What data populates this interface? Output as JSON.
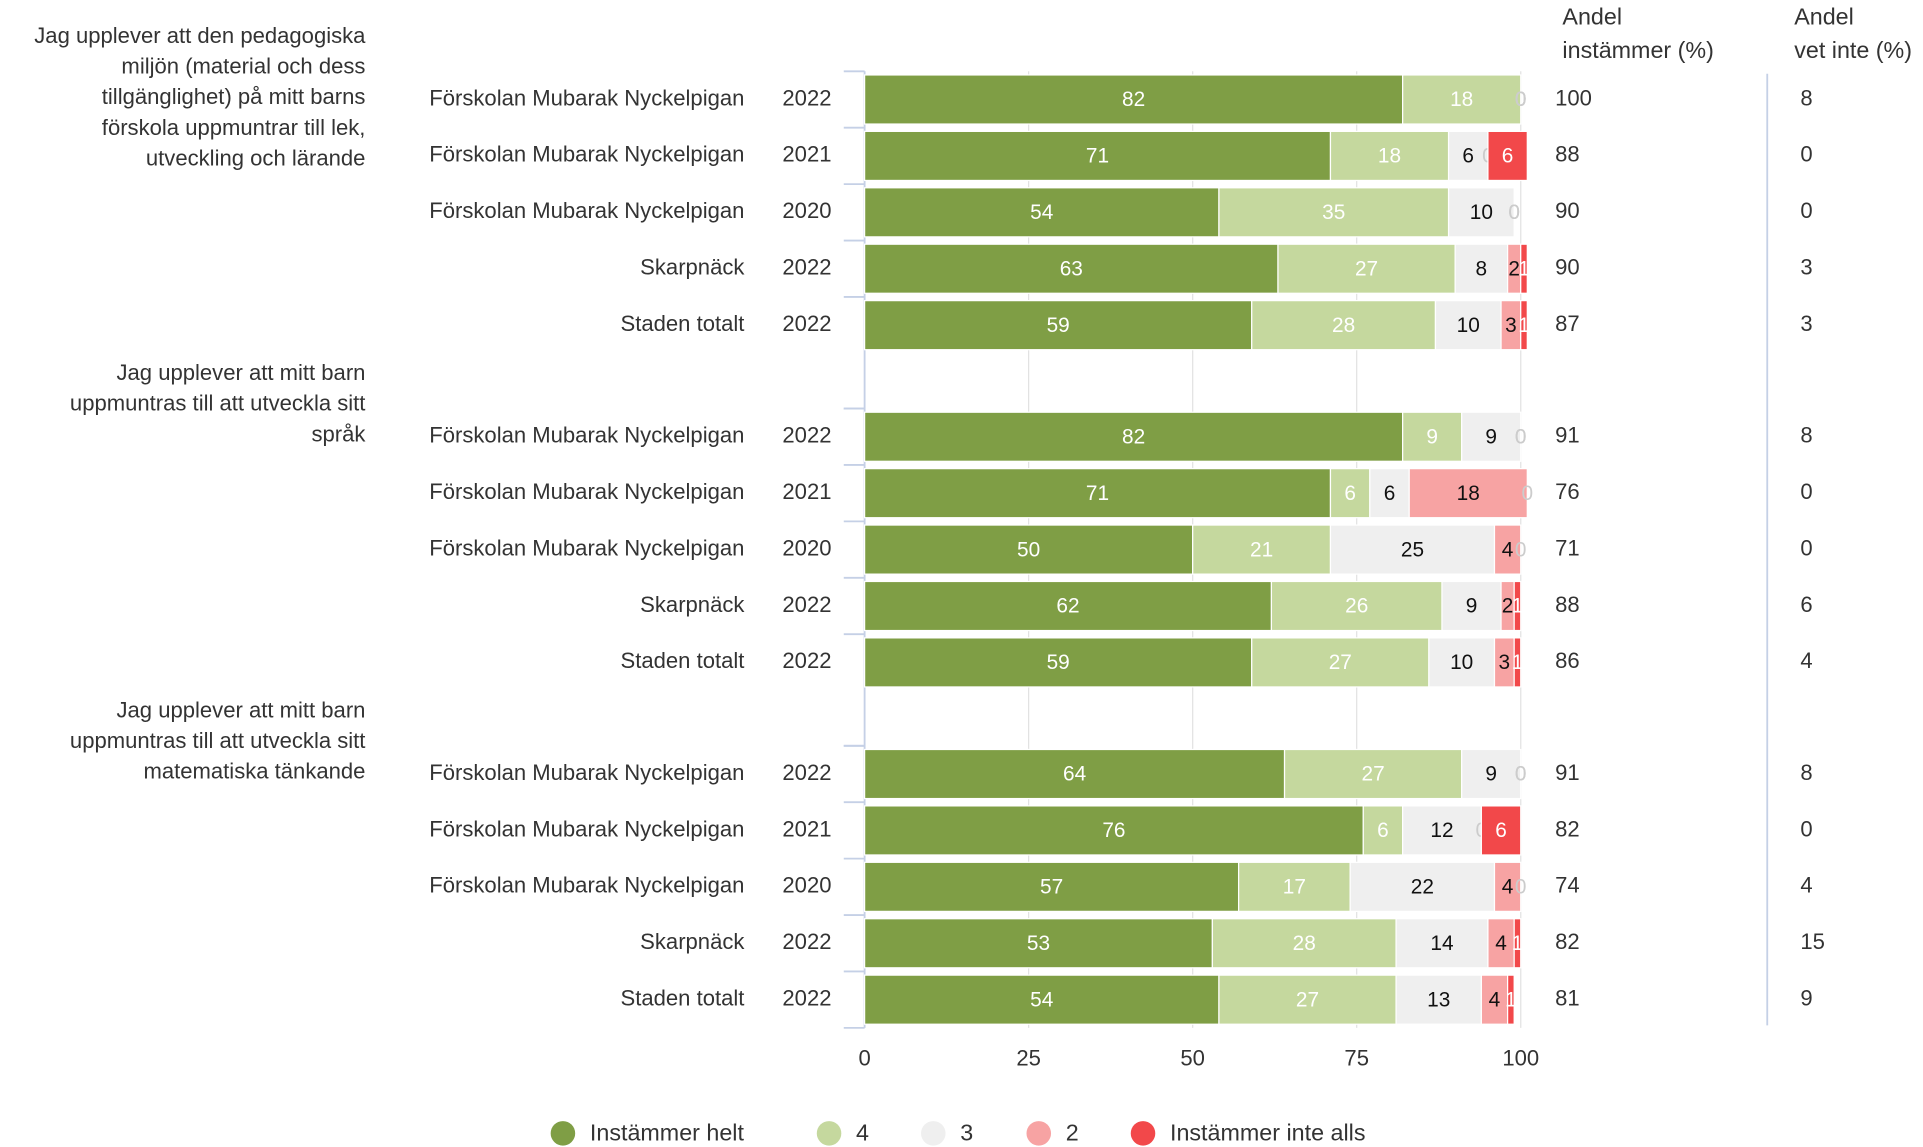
{
  "chart_data": {
    "type": "bar",
    "orientation": "horizontal",
    "stacked": true,
    "questions": [
      [
        "Jag upplever att den pedagogiska",
        "miljön (material och dess",
        "tillgänglighet) på mitt barns",
        "förskola uppmuntrar till lek,",
        "utveckling och lärande"
      ],
      [
        "Jag upplever att mitt barn",
        "uppmuntras till att utveckla sitt",
        "språk"
      ],
      [
        "Jag upplever att mitt barn",
        "uppmuntras till att utveckla sitt",
        "matematiska tänkande"
      ]
    ],
    "categories": [
      "Förskolan Mubarak Nyckelpigan",
      "Förskolan Mubarak Nyckelpigan",
      "Förskolan Mubarak Nyckelpigan",
      "Skarpnäck",
      "Staden totalt",
      "Förskolan Mubarak Nyckelpigan",
      "Förskolan Mubarak Nyckelpigan",
      "Förskolan Mubarak Nyckelpigan",
      "Skarpnäck",
      "Staden totalt",
      "Förskolan Mubarak Nyckelpigan",
      "Förskolan Mubarak Nyckelpigan",
      "Förskolan Mubarak Nyckelpigan",
      "Skarpnäck",
      "Staden totalt"
    ],
    "years": [
      2022,
      2021,
      2020,
      2022,
      2022,
      2022,
      2021,
      2020,
      2022,
      2022,
      2022,
      2021,
      2020,
      2022,
      2022
    ],
    "series": [
      {
        "name": "Instämmer helt",
        "color": "#7f9e45",
        "values": [
          82,
          71,
          54,
          63,
          59,
          82,
          71,
          50,
          62,
          59,
          64,
          76,
          57,
          53,
          54
        ]
      },
      {
        "name": "4",
        "color": "#c5d89e",
        "values": [
          18,
          18,
          35,
          27,
          28,
          9,
          6,
          21,
          26,
          27,
          27,
          6,
          17,
          28,
          27
        ]
      },
      {
        "name": "3",
        "color": "#efefef",
        "values": [
          0,
          6,
          10,
          8,
          10,
          9,
          6,
          25,
          9,
          10,
          9,
          12,
          22,
          14,
          13
        ]
      },
      {
        "name": "2",
        "color": "#f7a3a3",
        "values": [
          0,
          0,
          0,
          2,
          3,
          0,
          18,
          4,
          2,
          3,
          0,
          0,
          4,
          4,
          4
        ]
      },
      {
        "name": "Instämmer inte alls",
        "color": "#f2484a",
        "values": [
          0,
          6,
          0,
          1,
          1,
          0,
          0,
          0,
          1,
          1,
          0,
          6,
          0,
          1,
          1
        ]
      }
    ],
    "columns": [
      {
        "header": [
          "Andel",
          "instämmer (%)"
        ],
        "values": [
          100,
          88,
          90,
          90,
          87,
          91,
          76,
          71,
          88,
          86,
          91,
          82,
          74,
          82,
          81
        ]
      },
      {
        "header": [
          "Andel",
          "vet inte (%)"
        ],
        "values": [
          8,
          0,
          0,
          3,
          3,
          8,
          0,
          0,
          6,
          4,
          8,
          0,
          4,
          15,
          9
        ]
      }
    ],
    "xlim": [
      0,
      100
    ],
    "xticks": [
      0,
      25,
      50,
      75,
      100
    ],
    "grid": true
  }
}
